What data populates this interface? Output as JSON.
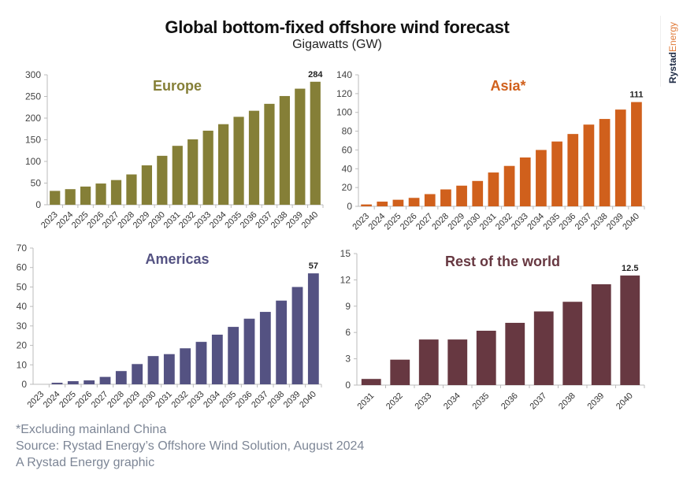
{
  "header": {
    "title": "Global bottom-fixed offshore wind forecast",
    "subtitle": "Gigawatts (GW)"
  },
  "logo": {
    "part1": "Rystad",
    "part2": "Energy"
  },
  "footer": {
    "note": "*Excluding mainland China",
    "source": "Source: Rystad Energy’s Offshore Wind Solution, August 2024",
    "credit": "A Rystad Energy graphic"
  },
  "chart_data": [
    {
      "type": "bar",
      "title": "Europe",
      "color": "#857f37",
      "categories": [
        "2023",
        "2024",
        "2025",
        "2026",
        "2027",
        "2028",
        "2029",
        "2030",
        "2031",
        "2032",
        "2033",
        "2034",
        "2035",
        "2036",
        "2037",
        "2038",
        "2039",
        "2040"
      ],
      "values": [
        32,
        36,
        42,
        49,
        57,
        70,
        91,
        113,
        136,
        151,
        171,
        186,
        203,
        217,
        233,
        251,
        268,
        284
      ],
      "ylim": [
        0,
        300
      ],
      "yticks": [
        0,
        50,
        100,
        150,
        200,
        250,
        300
      ],
      "data_label": "284",
      "xlabel": "",
      "ylabel": "",
      "grid": false
    },
    {
      "type": "bar",
      "title": "Asia*",
      "color": "#d0601c",
      "categories": [
        "2023",
        "2024",
        "2025",
        "2026",
        "2027",
        "2028",
        "2029",
        "2030",
        "2031",
        "2032",
        "2033",
        "2034",
        "2035",
        "2036",
        "2037",
        "2038",
        "2039",
        "2040"
      ],
      "values": [
        2,
        5,
        7,
        9,
        13,
        18,
        22,
        27,
        36,
        43,
        52,
        60,
        69,
        77,
        87,
        93,
        103,
        111
      ],
      "ylim": [
        0,
        140
      ],
      "yticks": [
        0,
        20,
        40,
        60,
        80,
        100,
        120,
        140
      ],
      "data_label": "111",
      "xlabel": "",
      "ylabel": "",
      "grid": false
    },
    {
      "type": "bar",
      "title": "Americas",
      "color": "#545282",
      "categories": [
        "2023",
        "2024",
        "2025",
        "2026",
        "2027",
        "2028",
        "2029",
        "2030",
        "2031",
        "2032",
        "2033",
        "2034",
        "2035",
        "2036",
        "2037",
        "2038",
        "2039",
        "2040"
      ],
      "values": [
        0,
        0.8,
        1.6,
        2,
        3.8,
        6.8,
        10.4,
        14.5,
        15.5,
        18.5,
        21.8,
        25.5,
        29.5,
        33.7,
        37.2,
        43,
        50,
        57
      ],
      "ylim": [
        0,
        70
      ],
      "yticks": [
        0,
        10,
        20,
        30,
        40,
        50,
        60,
        70
      ],
      "data_label": "57",
      "xlabel": "",
      "ylabel": "",
      "grid": false
    },
    {
      "type": "bar",
      "title": "Rest of the world",
      "color": "#673841",
      "categories": [
        "2031",
        "2032",
        "2033",
        "2034",
        "2035",
        "2036",
        "2037",
        "2038",
        "2039",
        "2040"
      ],
      "values": [
        0.7,
        2.9,
        5.2,
        5.2,
        6.2,
        7.1,
        8.4,
        9.5,
        11.5,
        12.5
      ],
      "ylim": [
        0,
        15
      ],
      "yticks": [
        0,
        3,
        6,
        9,
        12,
        15
      ],
      "data_label": "12.5",
      "xlabel": "",
      "ylabel": "",
      "grid": false
    }
  ]
}
